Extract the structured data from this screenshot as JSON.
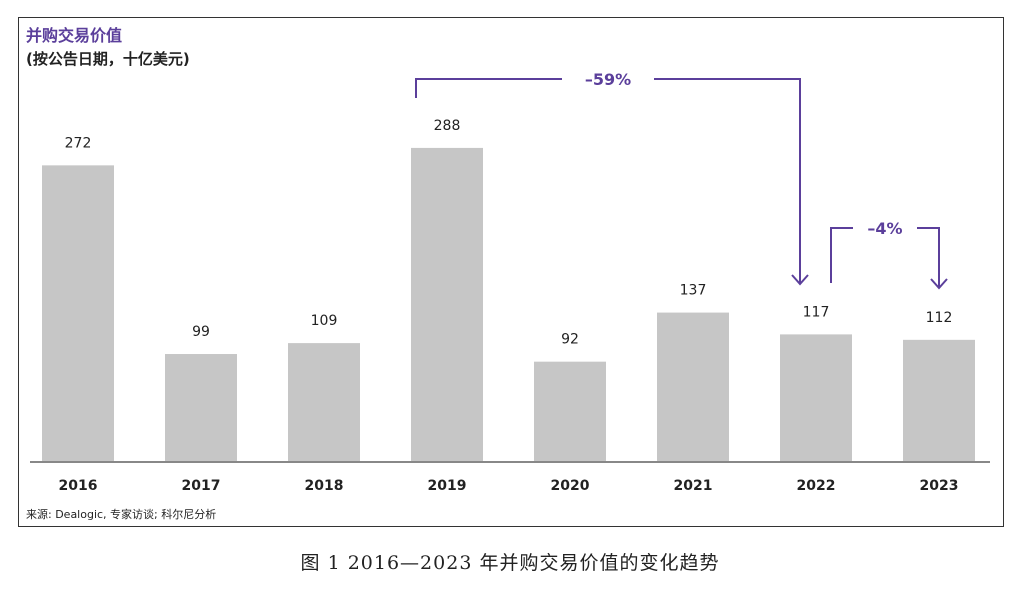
{
  "chart_data": {
    "type": "bar",
    "title": "并购交易价值",
    "subtitle": "(按公告日期，十亿美元)",
    "categories": [
      "2016",
      "2017",
      "2018",
      "2019",
      "2020",
      "2021",
      "2022",
      "2023"
    ],
    "values": [
      272,
      99,
      109,
      288,
      92,
      137,
      117,
      112
    ],
    "data_labels": [
      "272",
      "99",
      "109",
      "288",
      "92",
      "137",
      "117",
      "112"
    ],
    "ylim": [
      0,
      320
    ],
    "grid": false,
    "annotations": [
      {
        "label": "–59%",
        "from": "2019",
        "to": "2022"
      },
      {
        "label": "–4%",
        "from": "2022",
        "to": "2023"
      }
    ],
    "source": "来源: Dealogic, 专家访谈; 科尔尼分析"
  },
  "colors": {
    "bar": "#c6c6c6",
    "accent": "#5b3f9b",
    "axis": "#888888",
    "text": "#222222"
  },
  "caption": "图 1  2016—2023 年并购交易价值的变化趋势"
}
